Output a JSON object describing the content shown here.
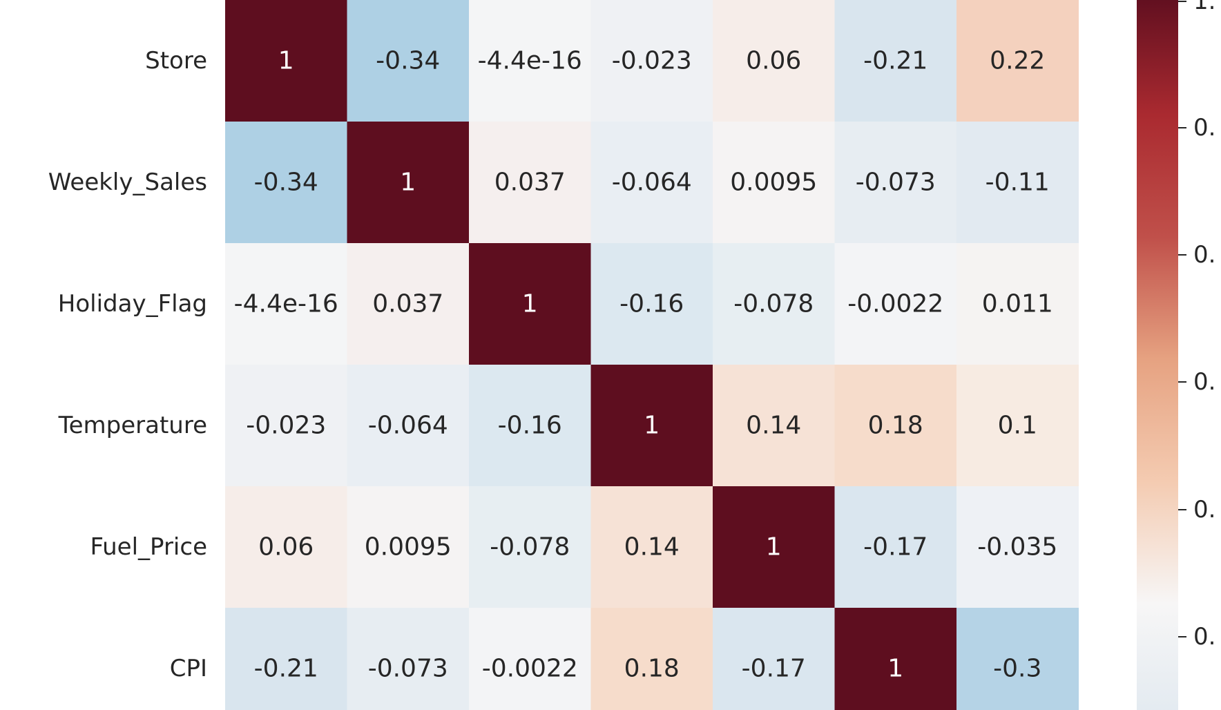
{
  "chart_data": {
    "type": "heatmap",
    "title": "",
    "xlabel": "",
    "ylabel": "",
    "rows": [
      "Store",
      "Weekly_Sales",
      "Holiday_Flag",
      "Temperature",
      "Fuel_Price",
      "CPI"
    ],
    "values": [
      [
        1,
        -0.34,
        -4.4e-16,
        -0.023,
        0.06,
        -0.21,
        0.22
      ],
      [
        -0.34,
        1,
        0.037,
        -0.064,
        0.0095,
        -0.073,
        -0.11
      ],
      [
        -4.4e-16,
        0.037,
        1,
        -0.16,
        -0.078,
        -0.0022,
        0.011
      ],
      [
        -0.023,
        -0.064,
        -0.16,
        1,
        0.14,
        0.18,
        0.1
      ],
      [
        0.06,
        0.0095,
        -0.078,
        0.14,
        1,
        -0.17,
        -0.035
      ],
      [
        -0.21,
        -0.073,
        -0.0022,
        0.18,
        -0.17,
        1,
        -0.3
      ]
    ],
    "labels": [
      [
        "1",
        "-0.34",
        "-4.4e-16",
        "-0.023",
        "0.06",
        "-0.21",
        "0.22"
      ],
      [
        "-0.34",
        "1",
        "0.037",
        "-0.064",
        "0.0095",
        "-0.073",
        "-0.11"
      ],
      [
        "-4.4e-16",
        "0.037",
        "1",
        "-0.16",
        "-0.078",
        "-0.0022",
        "0.011"
      ],
      [
        "-0.023",
        "-0.064",
        "-0.16",
        "1",
        "0.14",
        "0.18",
        "0.1"
      ],
      [
        "0.06",
        "0.0095",
        "-0.078",
        "0.14",
        "1",
        "-0.17",
        "-0.035"
      ],
      [
        "-0.21",
        "-0.073",
        "-0.0022",
        "0.18",
        "-0.17",
        "1",
        "-0.3"
      ]
    ],
    "colormap": "RdBu_r",
    "colorbar": {
      "vmin": -0.34,
      "vmax": 1,
      "ticks_visible": [
        "1.",
        "0.",
        "0.",
        "0.",
        "0.",
        "0."
      ],
      "colors": [
        "#e1e9f0",
        "#f7f6f6",
        "#f4cbb1",
        "#e6a281",
        "#c0504a",
        "#aa2a30",
        "#5e0e1f"
      ]
    },
    "cell_colors": [
      [
        "#5e0e1f",
        "#aed0e4",
        "#f4f5f6",
        "#eff1f4",
        "#f6ede9",
        "#d9e5ee",
        "#f4d1be"
      ],
      [
        "#aed0e4",
        "#5e0e1f",
        "#f5efee",
        "#e9eef3",
        "#f5f3f3",
        "#e7edf2",
        "#e2eaf1"
      ],
      [
        "#f4f5f6",
        "#f5efee",
        "#5e0e1f",
        "#dce8f0",
        "#e7eef2",
        "#f3f4f6",
        "#f5f3f2"
      ],
      [
        "#eff1f4",
        "#e9eef3",
        "#dce8f0",
        "#5e0e1f",
        "#f6e2d6",
        "#f6dccb",
        "#f7ebe2"
      ],
      [
        "#f6ede9",
        "#f5f3f3",
        "#e7eef2",
        "#f6e2d6",
        "#5e0e1f",
        "#dae6ef",
        "#eef1f5"
      ],
      [
        "#d9e5ee",
        "#e7edf2",
        "#f3f4f6",
        "#f6dccb",
        "#dae6ef",
        "#5e0e1f",
        "#b5d3e6"
      ]
    ]
  }
}
